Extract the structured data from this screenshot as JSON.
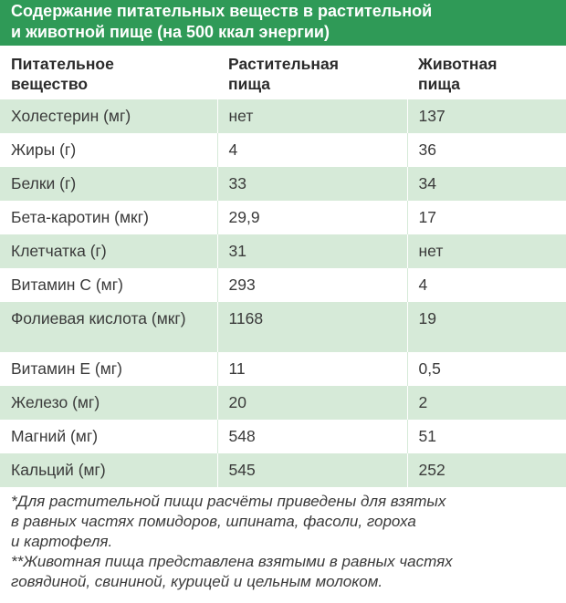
{
  "header": {
    "title_line1": "Содержание питательных веществ в растительной",
    "title_line2": "и животной пище (на 500 ккал энергии)"
  },
  "table": {
    "columns": [
      {
        "line1": "Питательное",
        "line2": "вещество"
      },
      {
        "line1": "Растительная",
        "line2": "пища"
      },
      {
        "line1": "Животная",
        "line2": "пища"
      }
    ],
    "rows": [
      {
        "nutrient": "Холестерин (мг)",
        "plant": "нет",
        "animal": "137"
      },
      {
        "nutrient": "Жиры (г)",
        "plant": "4",
        "animal": "36"
      },
      {
        "nutrient": "Белки (г)",
        "plant": "33",
        "animal": "34"
      },
      {
        "nutrient": "Бета-каротин (мкг)",
        "plant": "29,9",
        "animal": "17"
      },
      {
        "nutrient": "Клетчатка (г)",
        "plant": "31",
        "animal": "нет"
      },
      {
        "nutrient": "Витамин С (мг)",
        "plant": "293",
        "animal": "4"
      },
      {
        "nutrient": "Фолиевая кислота (мкг)",
        "plant": "1168",
        "animal": "19"
      },
      {
        "nutrient": "Витамин Е (мг)",
        "plant": "11",
        "animal": "0,5"
      },
      {
        "nutrient": "Железо (мг)",
        "plant": "20",
        "animal": "2"
      },
      {
        "nutrient": "Магний (мг)",
        "plant": "548",
        "animal": "51"
      },
      {
        "nutrient": "Кальций (мг)",
        "plant": "545",
        "animal": "252"
      }
    ]
  },
  "notes": {
    "line1": "*Для растительной пищи расчёты приведены для взятых",
    "line2": "в равных частях помидоров, шпината, фасоли, гороха",
    "line3": "и картофеля.",
    "line4": "**Животная пища представлена взятыми в равных частях",
    "line5": "говядиной, свининой, курицей и цельным молоком."
  },
  "colors": {
    "header_bg": "#2f9a57",
    "stripe_bg": "#d6ead8"
  }
}
